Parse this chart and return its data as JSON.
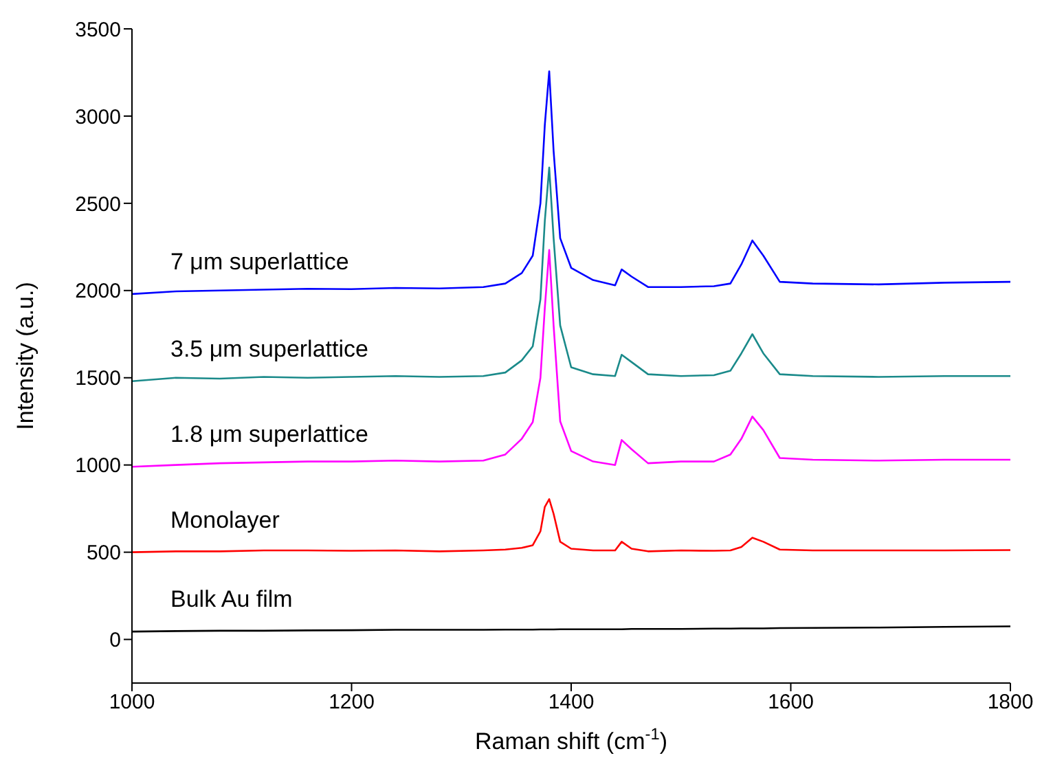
{
  "chart_data": {
    "type": "line",
    "xlabel": "Raman shift (cm$^{-1}$)",
    "ylabel": "Intensity (a.u.)",
    "x": [
      1000,
      1040,
      1080,
      1120,
      1160,
      1200,
      1240,
      1280,
      1320,
      1340,
      1355,
      1365,
      1372,
      1376,
      1380,
      1384,
      1390,
      1400,
      1420,
      1440,
      1446,
      1455,
      1470,
      1500,
      1530,
      1545,
      1555,
      1565,
      1575,
      1590,
      1620,
      1680,
      1740,
      1800
    ],
    "series": [
      {
        "name": "7 μm superlattice",
        "color": "#0000ff",
        "values": [
          1980,
          1995,
          2000,
          2005,
          2010,
          2008,
          2015,
          2012,
          2020,
          2040,
          2100,
          2200,
          2500,
          2950,
          3257,
          2800,
          2300,
          2130,
          2060,
          2030,
          2121,
          2080,
          2020,
          2020,
          2025,
          2040,
          2150,
          2287,
          2200,
          2050,
          2040,
          2035,
          2045,
          2050
        ]
      },
      {
        "name": "3.5 μm superlattice",
        "color": "#1a8a8a",
        "values": [
          1480,
          1500,
          1495,
          1505,
          1500,
          1505,
          1510,
          1505,
          1510,
          1530,
          1600,
          1680,
          1950,
          2400,
          2705,
          2300,
          1800,
          1560,
          1520,
          1510,
          1632,
          1590,
          1520,
          1510,
          1515,
          1540,
          1640,
          1750,
          1640,
          1520,
          1510,
          1505,
          1510,
          1510
        ]
      },
      {
        "name": "1.8 μm superlattice",
        "color": "#ff00ff",
        "values": [
          990,
          1000,
          1010,
          1015,
          1020,
          1020,
          1025,
          1020,
          1025,
          1060,
          1150,
          1246,
          1500,
          1900,
          2232,
          1800,
          1250,
          1080,
          1020,
          1000,
          1143,
          1090,
          1010,
          1020,
          1020,
          1060,
          1150,
          1278,
          1200,
          1040,
          1030,
          1025,
          1030,
          1030
        ]
      },
      {
        "name": "Monolayer",
        "color": "#ff0000",
        "values": [
          500,
          505,
          505,
          510,
          510,
          508,
          510,
          505,
          510,
          515,
          525,
          540,
          620,
          760,
          804,
          720,
          560,
          520,
          510,
          510,
          560,
          520,
          505,
          510,
          508,
          510,
          530,
          583,
          560,
          515,
          510,
          510,
          510,
          512
        ]
      },
      {
        "name": "Bulk Au film",
        "color": "#000000",
        "values": [
          45,
          48,
          50,
          50,
          52,
          53,
          55,
          55,
          55,
          56,
          56,
          56,
          57,
          57,
          57,
          57,
          58,
          58,
          58,
          58,
          58,
          60,
          60,
          60,
          62,
          62,
          63,
          63,
          63,
          65,
          66,
          68,
          72,
          75
        ]
      }
    ],
    "xlim": [
      1000,
      1800
    ],
    "xticks": [
      1000,
      1200,
      1400,
      1600,
      1800
    ],
    "ylim": [
      -250,
      3500
    ],
    "yticks": [
      0,
      500,
      1000,
      1500,
      2000,
      2500,
      3000,
      3500
    ],
    "grid": false,
    "legend": false,
    "marker": "none",
    "line_style": "solid"
  }
}
